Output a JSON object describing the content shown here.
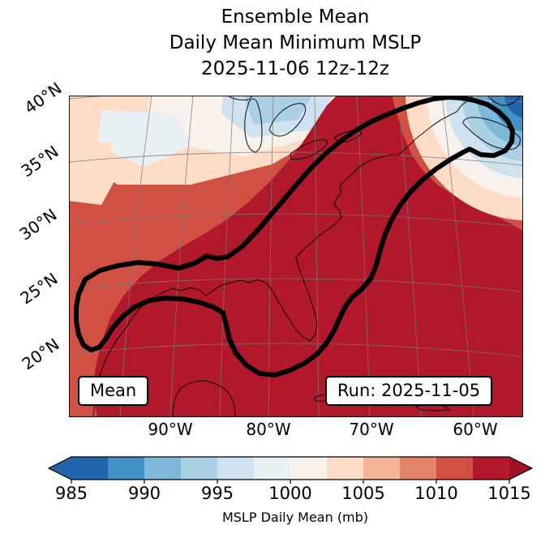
{
  "title": {
    "line1": "Ensemble Mean",
    "line2": "Daily Mean Minimum MSLP",
    "line3": "2025-11-06 12z-12z"
  },
  "map": {
    "mean_box_label": "Mean",
    "run_box_label": "Run: 2025-11-05"
  },
  "chart_data": {
    "type": "heatmap",
    "title": "Ensemble Mean — Daily Mean Minimum MSLP — 2025-11-06 12z-12z",
    "x_tick_labels": [
      "90°W",
      "80°W",
      "70°W",
      "60°W"
    ],
    "y_tick_labels": [
      "40°N",
      "35°N",
      "30°N",
      "25°N",
      "20°N"
    ],
    "colorbar": {
      "label": "MSLP Daily Mean (mb)",
      "tick_values": [
        985,
        990,
        995,
        1000,
        1005,
        1010,
        1015
      ],
      "vmin": 985,
      "vmax": 1015,
      "contour_interval_mb": 2.5,
      "extend": "both",
      "colormap": "RdBu_r",
      "colors": [
        "#2166ac",
        "#4191c6",
        "#7db8da",
        "#abd0e5",
        "#cfe2ef",
        "#e9f0f4",
        "#f8f1ec",
        "#fcdcc6",
        "#f5b497",
        "#e58368",
        "#d05043",
        "#b2182b"
      ],
      "arrow_colors": {
        "under": "#2166ac",
        "over": "#9e1126"
      }
    },
    "regions": [
      {
        "area": "Gulf of Mexico, Florida, Southeast US coast and western Atlantic",
        "mslp_mb": ">= 1015"
      },
      {
        "area": "western flank of domain (Texas, plains, Mexico)",
        "mslp_mb": "1007.5 - 1012.5"
      },
      {
        "area": "upper Midwest / Great Lakes patches",
        "mslp_mb": "997.5 - 1005"
      },
      {
        "area": "closed low in northeast corner near Atlantic Canada",
        "mslp_mb": "<= 987.5 at center, rising outward to ~1005"
      }
    ],
    "annotations": [
      {
        "text": "Mean",
        "position": "bottom-left"
      },
      {
        "text": "Run: 2025-11-05",
        "position": "bottom-right"
      }
    ],
    "thick_contour": "single bold black closed contour enclosing the Gulf of Mexico coast, Florida and the US East Coast northeastward to Nova Scotia"
  }
}
